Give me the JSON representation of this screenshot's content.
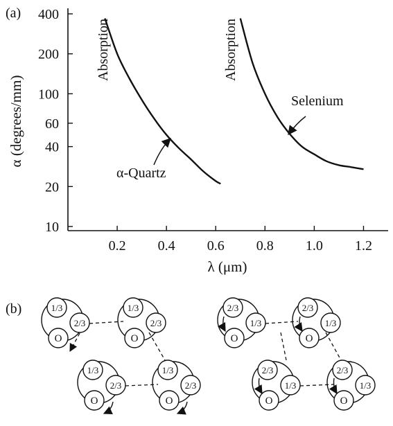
{
  "panels": {
    "a": "(a)",
    "b": "(b)"
  },
  "chart_data": {
    "type": "line",
    "xlabel": "λ (μm)",
    "ylabel": "α (degrees/mm)",
    "xlim": [
      0.0,
      1.3
    ],
    "ylim": [
      10,
      400
    ],
    "yscale": "log",
    "xticks": [
      "0.2",
      "0.4",
      "0.6",
      "0.8",
      "1.0",
      "1.2"
    ],
    "yticks": [
      "10",
      "20",
      "40",
      "60",
      "100",
      "200",
      "400"
    ],
    "grid": false,
    "series": [
      {
        "name": "α-Quartz",
        "x": [
          0.15,
          0.2,
          0.25,
          0.3,
          0.35,
          0.4,
          0.45,
          0.5,
          0.55,
          0.6,
          0.62
        ],
        "y": [
          370,
          200,
          130,
          90,
          65,
          49,
          39,
          32,
          26,
          22,
          21
        ]
      },
      {
        "name": "Selenium",
        "x": [
          0.7,
          0.75,
          0.8,
          0.85,
          0.9,
          0.95,
          1.0,
          1.05,
          1.1,
          1.15,
          1.2
        ],
        "y": [
          370,
          170,
          100,
          67,
          50,
          40,
          35,
          31,
          29,
          28,
          27
        ]
      }
    ],
    "annotations": [
      {
        "text": "Absorption",
        "near_series": "α-Quartz",
        "orientation": "vertical"
      },
      {
        "text": "Absorption",
        "near_series": "Selenium",
        "orientation": "vertical"
      },
      {
        "text": "α-Quartz",
        "arrow_to_series": "α-Quartz"
      },
      {
        "text": "Selenium",
        "arrow_to_series": "Selenium"
      }
    ]
  },
  "diagram": {
    "label_top": "1/3",
    "label_mid_left": "2/3",
    "label_bottom": "O",
    "right_label_top": "2/3",
    "right_label_mid": "1/3",
    "right_label_bottom": "O"
  }
}
